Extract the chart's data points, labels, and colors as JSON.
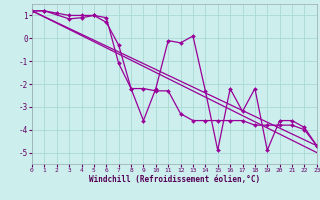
{
  "xlabel": "Windchill (Refroidissement éolien,°C)",
  "bg_color": "#cceeed",
  "grid_color": "#aad8d6",
  "line_color": "#990099",
  "xlim": [
    0,
    23
  ],
  "ylim": [
    -5.5,
    1.5
  ],
  "yticks": [
    -5,
    -4,
    -3,
    -2,
    -1,
    0,
    1
  ],
  "xticks": [
    0,
    1,
    2,
    3,
    4,
    5,
    6,
    7,
    8,
    9,
    10,
    11,
    12,
    13,
    14,
    15,
    16,
    17,
    18,
    19,
    20,
    21,
    22,
    23
  ],
  "line1_x": [
    0,
    1,
    2,
    3,
    4,
    5,
    6,
    7,
    8,
    9,
    10,
    11,
    12,
    13,
    14,
    15,
    16,
    17,
    18,
    19,
    20,
    21,
    22,
    23
  ],
  "line1_y": [
    1.2,
    1.2,
    1.1,
    1.0,
    1.0,
    1.0,
    0.7,
    -0.3,
    -2.2,
    -3.6,
    -2.2,
    -0.1,
    -0.2,
    0.1,
    -2.3,
    -4.9,
    -2.2,
    -3.2,
    -2.2,
    -4.9,
    -3.6,
    -3.6,
    -3.9,
    -4.7
  ],
  "line2_x": [
    0,
    1,
    3,
    4,
    5,
    6,
    7,
    8,
    9,
    10,
    11,
    12,
    13,
    14,
    15,
    16,
    17,
    18,
    19,
    20,
    21,
    22,
    23
  ],
  "line2_y": [
    1.2,
    1.2,
    0.85,
    0.9,
    1.0,
    0.9,
    -1.1,
    -2.2,
    -2.2,
    -2.3,
    -2.3,
    -3.3,
    -3.6,
    -3.6,
    -3.6,
    -3.6,
    -3.6,
    -3.8,
    -3.8,
    -3.8,
    -3.8,
    -4.0,
    -4.7
  ],
  "line3_x": [
    0,
    23
  ],
  "line3_y": [
    1.2,
    -4.7
  ],
  "line4_x": [
    0,
    23
  ],
  "line4_y": [
    1.2,
    -5.0
  ]
}
